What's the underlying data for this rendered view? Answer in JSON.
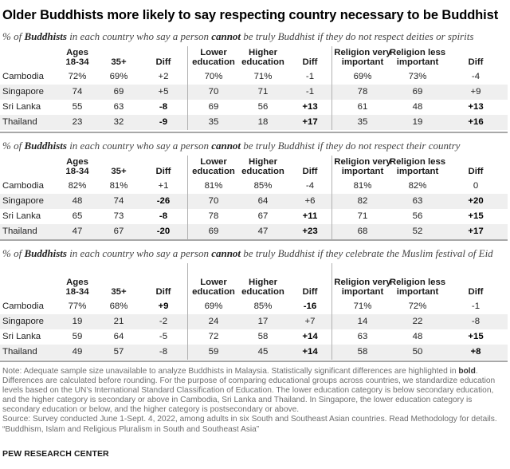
{
  "title": "Older Buddhists more likely to say respecting country necessary to be Buddhist",
  "headers": {
    "ages": "Ages\n18-34",
    "age35": "35+",
    "diff": "Diff",
    "lower_edu": "Lower\neducation",
    "higher_edu": "Higher\neducation",
    "rel_very": "Religion very\nimportant",
    "rel_less": "Religion less\nimportant"
  },
  "sections": [
    {
      "subtitle_pre": "% of ",
      "subtitle_bold": "Buddhists",
      "subtitle_mid": " in each country who say a person ",
      "subtitle_bold2": "cannot",
      "subtitle_post": " be truly Buddhist if they do not respect deities or spirits",
      "rows": [
        {
          "country": "Cambodia",
          "cells": [
            "72%",
            "69%",
            "+2",
            "70%",
            "71%",
            "-1",
            "69%",
            "73%",
            "-4"
          ],
          "bold": [
            false,
            false,
            false,
            false,
            false,
            false,
            false,
            false,
            false
          ]
        },
        {
          "country": "Singapore",
          "cells": [
            "74",
            "69",
            "+5",
            "70",
            "71",
            "-1",
            "78",
            "69",
            "+9"
          ],
          "bold": [
            false,
            false,
            false,
            false,
            false,
            false,
            false,
            false,
            false
          ]
        },
        {
          "country": "Sri Lanka",
          "cells": [
            "55",
            "63",
            "-8",
            "69",
            "56",
            "+13",
            "61",
            "48",
            "+13"
          ],
          "bold": [
            false,
            false,
            true,
            false,
            false,
            true,
            false,
            false,
            true
          ]
        },
        {
          "country": "Thailand",
          "cells": [
            "23",
            "32",
            "-9",
            "35",
            "18",
            "+17",
            "35",
            "19",
            "+16"
          ],
          "bold": [
            false,
            false,
            true,
            false,
            false,
            true,
            false,
            false,
            true
          ]
        }
      ]
    },
    {
      "subtitle_pre": "% of ",
      "subtitle_bold": "Buddhists",
      "subtitle_mid": " in each country who say a person ",
      "subtitle_bold2": "cannot",
      "subtitle_post": " be truly Buddhist if they do not respect their country",
      "rows": [
        {
          "country": "Cambodia",
          "cells": [
            "82%",
            "81%",
            "+1",
            "81%",
            "85%",
            "-4",
            "81%",
            "82%",
            "0"
          ],
          "bold": [
            false,
            false,
            false,
            false,
            false,
            false,
            false,
            false,
            false
          ]
        },
        {
          "country": "Singapore",
          "cells": [
            "48",
            "74",
            "-26",
            "70",
            "64",
            "+6",
            "82",
            "63",
            "+20"
          ],
          "bold": [
            false,
            false,
            true,
            false,
            false,
            false,
            false,
            false,
            true
          ]
        },
        {
          "country": "Sri Lanka",
          "cells": [
            "65",
            "73",
            "-8",
            "78",
            "67",
            "+11",
            "71",
            "56",
            "+15"
          ],
          "bold": [
            false,
            false,
            true,
            false,
            false,
            true,
            false,
            false,
            true
          ]
        },
        {
          "country": "Thailand",
          "cells": [
            "47",
            "67",
            "-20",
            "69",
            "47",
            "+23",
            "68",
            "52",
            "+17"
          ],
          "bold": [
            false,
            false,
            true,
            false,
            false,
            true,
            false,
            false,
            true
          ]
        }
      ]
    },
    {
      "subtitle_pre": "% of ",
      "subtitle_bold": "Buddhists",
      "subtitle_mid": " in each country who say a person ",
      "subtitle_bold2": "cannot",
      "subtitle_post": " be truly Buddhist if they celebrate the Muslim festival of Eid",
      "rows": [
        {
          "country": "Cambodia",
          "cells": [
            "77%",
            "68%",
            "+9",
            "69%",
            "85%",
            "-16",
            "71%",
            "72%",
            "-1"
          ],
          "bold": [
            false,
            false,
            true,
            false,
            false,
            true,
            false,
            false,
            false
          ]
        },
        {
          "country": "Singapore",
          "cells": [
            "19",
            "21",
            "-2",
            "24",
            "17",
            "+7",
            "14",
            "22",
            "-8"
          ],
          "bold": [
            false,
            false,
            false,
            false,
            false,
            false,
            false,
            false,
            false
          ]
        },
        {
          "country": "Sri Lanka",
          "cells": [
            "59",
            "64",
            "-5",
            "72",
            "58",
            "+14",
            "63",
            "48",
            "+15"
          ],
          "bold": [
            false,
            false,
            false,
            false,
            false,
            true,
            false,
            false,
            true
          ]
        },
        {
          "country": "Thailand",
          "cells": [
            "49",
            "57",
            "-8",
            "59",
            "45",
            "+14",
            "58",
            "50",
            "+8"
          ],
          "bold": [
            false,
            false,
            false,
            false,
            false,
            true,
            false,
            false,
            true
          ]
        }
      ]
    }
  ],
  "note_lines": [
    "Note: Adequate sample size unavailable to analyze Buddhists in Malaysia. Statistically significant differences are highlighted in ",
    "bold",
    ". Differences are calculated before rounding. For the purpose of comparing educational groups across countries, we standardize education levels based on the UN’s International Standard Classification of Education. The lower education category is below secondary education, and the higher category is secondary or above in Cambodia, Sri Lanka and Thailand. In Singapore, the lower education category is secondary education or below, and the higher category is postsecondary or above.",
    "Source: Survey conducted June 1-Sept. 4, 2022, among adults in six South and Southeast Asian countries. Read Methodology for details.",
    "“Buddhism, Islam and Religious Pluralism in South and Southeast Asia”"
  ],
  "footer": "PEW RESEARCH CENTER",
  "colors": {
    "shade": "#efefef",
    "separator": "#a8a8a8",
    "note": "#6e6e6e"
  }
}
